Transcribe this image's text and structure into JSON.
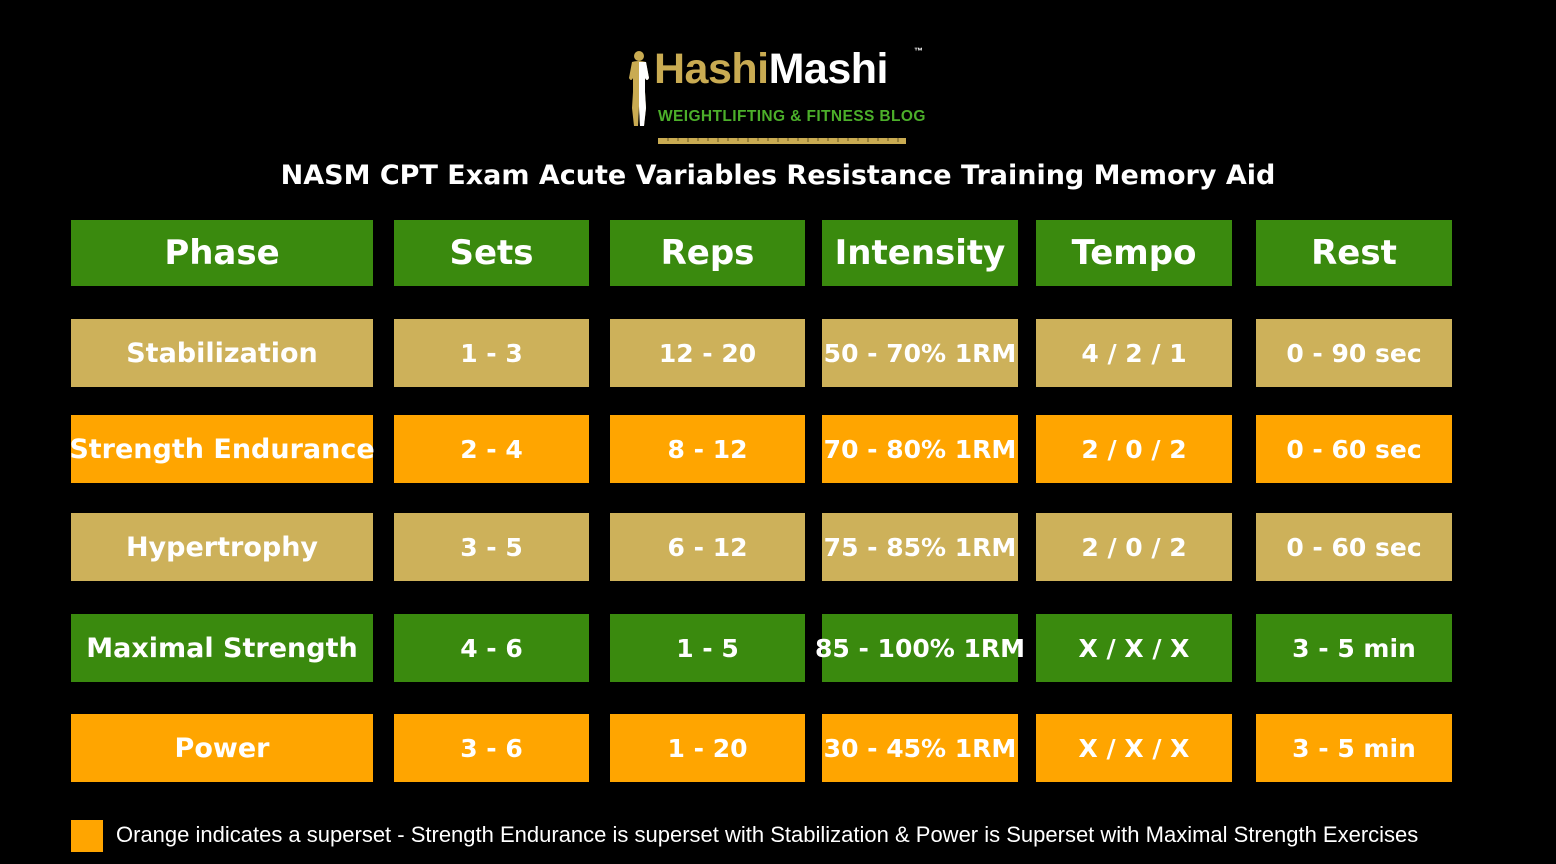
{
  "logo": {
    "brand_part1": "Hashi",
    "brand_part2": "Mashi",
    "trademark": "™",
    "tagline": "WEIGHTLIFTING & FITNESS BLOG"
  },
  "title": "NASM CPT Exam Acute Variables Resistance Training Memory Aid",
  "colors": {
    "background": "#000000",
    "header_green": "#3a8a0e",
    "tan": "#cdb15a",
    "orange": "#ffa500",
    "logo_gold": "#c9ab52",
    "logo_green": "#4caf2a"
  },
  "table": {
    "headers": [
      "Phase",
      "Sets",
      "Reps",
      "Intensity",
      "Tempo",
      "Rest"
    ],
    "rows": [
      {
        "color": "tan",
        "cells": [
          "Stabilization",
          "1 - 3",
          "12 - 20",
          "50 - 70% 1RM",
          "4 / 2 / 1",
          "0 - 90 sec"
        ]
      },
      {
        "color": "orange",
        "cells": [
          "Strength Endurance",
          "2 - 4",
          "8 - 12",
          "70 - 80% 1RM",
          "2 / 0 / 2",
          "0 - 60 sec"
        ]
      },
      {
        "color": "tan",
        "cells": [
          "Hypertrophy",
          "3 - 5",
          "6 - 12",
          "75 - 85% 1RM",
          "2 / 0 / 2",
          "0 - 60 sec"
        ]
      },
      {
        "color": "green",
        "cells": [
          "Maximal Strength",
          "4 - 6",
          "1 - 5",
          "85 - 100% 1RM",
          "X / X / X",
          "3 - 5 min"
        ]
      },
      {
        "color": "orange",
        "cells": [
          "Power",
          "3 - 6",
          "1 - 20",
          "30 - 45% 1RM",
          "X / X / X",
          "3 - 5 min"
        ]
      }
    ]
  },
  "legend": {
    "text": "Orange indicates a superset - Strength Endurance is superset with Stabilization & Power is Superset with Maximal Strength Exercises"
  }
}
